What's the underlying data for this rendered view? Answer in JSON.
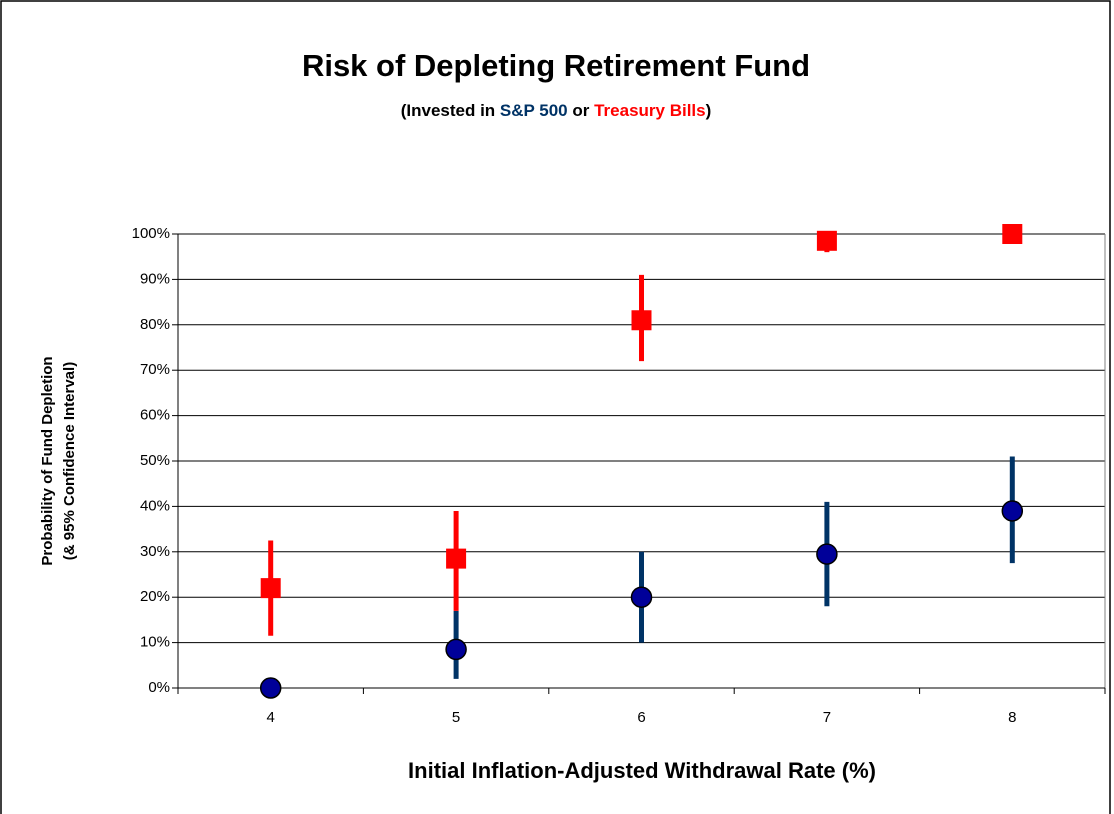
{
  "chart_data": {
    "type": "errorbar",
    "title": "Risk of Depleting Retirement Fund",
    "subtitle_prefix": "(Invested in ",
    "subtitle_joiner": " or ",
    "subtitle_suffix": ")",
    "xlabel": "Initial Inflation-Adjusted Withdrawal Rate (%)",
    "ylabel": [
      "Probability of Fund Depletion",
      "(& 95% Confidence Interval)"
    ],
    "categories": [
      "4",
      "5",
      "6",
      "7",
      "8"
    ],
    "series": [
      {
        "name": "S&P 500",
        "color": "#000099",
        "bar_color": "#003366",
        "marker": "circle",
        "values": [
          0,
          8.5,
          20,
          29.5,
          39
        ],
        "lower": [
          0,
          2,
          10,
          18,
          27.5
        ],
        "upper": [
          0,
          17,
          30,
          41,
          51
        ]
      },
      {
        "name": "Treasury Bills",
        "color": "#ff0000",
        "bar_color": "#ff0000",
        "marker": "square",
        "values": [
          22,
          28.5,
          81,
          98.5,
          100
        ],
        "lower": [
          11.5,
          17,
          72,
          96,
          100
        ],
        "upper": [
          32.5,
          39,
          91,
          100,
          100
        ]
      }
    ],
    "ylim": [
      0,
      100
    ],
    "yticks": [
      {
        "value": 0,
        "label": "0%"
      },
      {
        "value": 10,
        "label": "10%"
      },
      {
        "value": 20,
        "label": "20%"
      },
      {
        "value": 30,
        "label": "30%"
      },
      {
        "value": 40,
        "label": "40%"
      },
      {
        "value": 50,
        "label": "50%"
      },
      {
        "value": 60,
        "label": "60%"
      },
      {
        "value": 70,
        "label": "70%"
      },
      {
        "value": 80,
        "label": "80%"
      },
      {
        "value": 90,
        "label": "90%"
      },
      {
        "value": 100,
        "label": "100%"
      }
    ],
    "grid": true
  }
}
